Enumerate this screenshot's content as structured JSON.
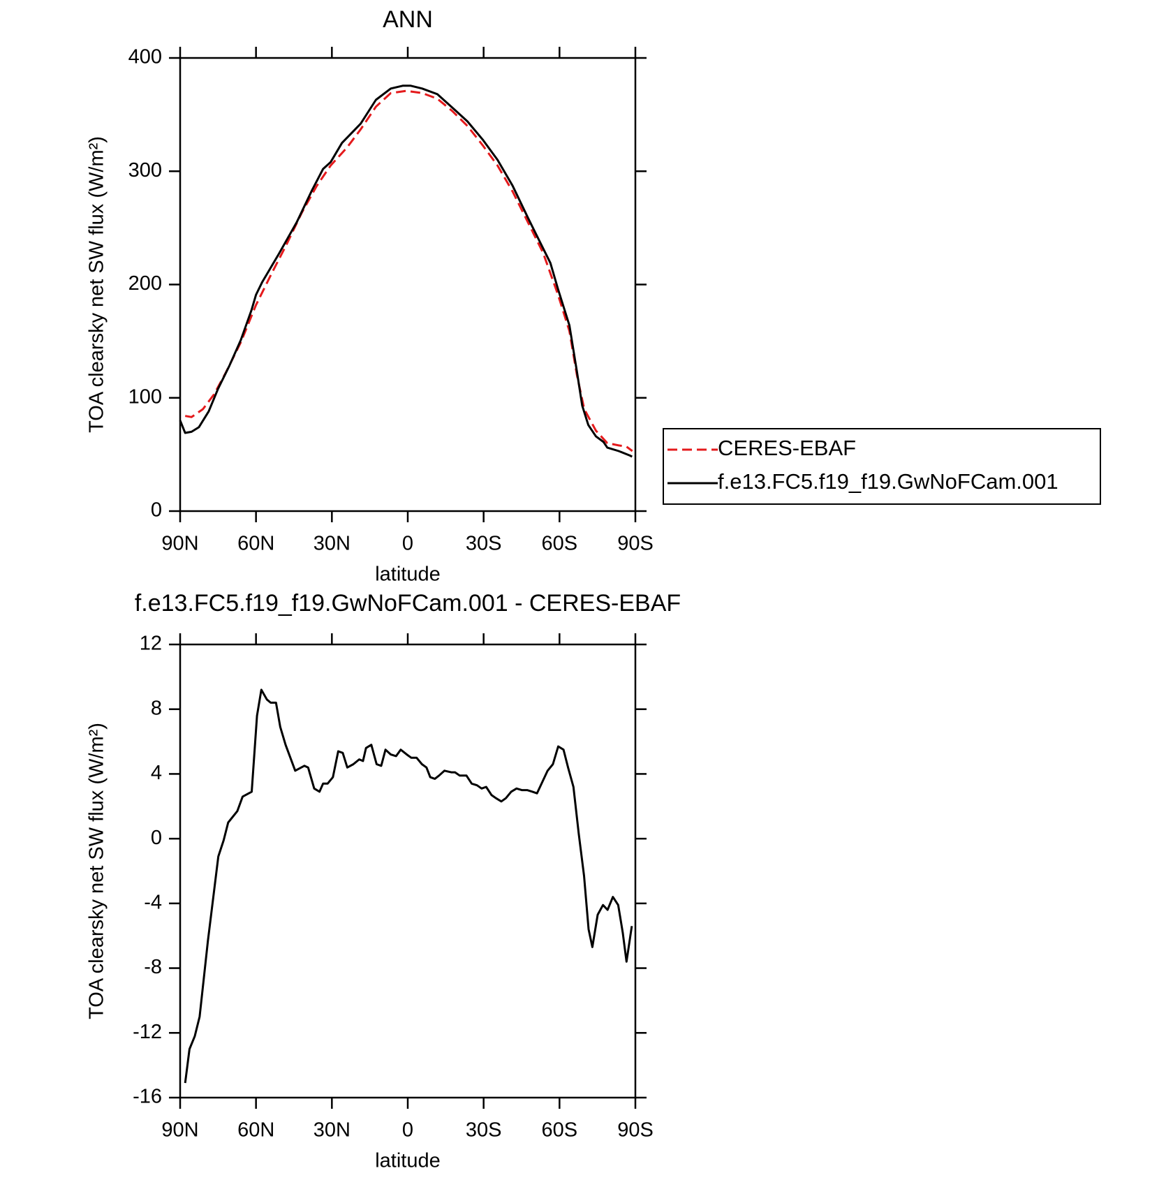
{
  "chart_data": [
    {
      "type": "line",
      "title": "ANN",
      "xlabel": "latitude",
      "ylabel": "TOA clearsky net SW flux (W/m²)",
      "xlim": [
        90,
        -90
      ],
      "xticks": [
        {
          "value": 90,
          "label": "90N"
        },
        {
          "value": 60,
          "label": "60N"
        },
        {
          "value": 30,
          "label": "30N"
        },
        0,
        {
          "value": -30,
          "label": "30S"
        },
        {
          "value": -60,
          "label": "60S"
        },
        {
          "value": -90,
          "label": "90S"
        }
      ],
      "ylim": [
        0,
        400
      ],
      "yticks": [
        0,
        100,
        200,
        300,
        400
      ],
      "legend": "right",
      "series": [
        {
          "name": "CERES-EBAF",
          "color": "#e41a1c",
          "style": "dashed",
          "x": [
            88,
            85.5,
            81,
            76.6,
            72,
            66,
            60,
            54,
            48,
            42,
            36,
            30.5,
            24,
            18.6,
            12.6,
            6.7,
            0.6,
            -5.7,
            -11.7,
            -17.7,
            -23.6,
            -29.6,
            -35.5,
            -41.5,
            -47.5,
            -53.5,
            -59.4,
            -63.9,
            -66.9,
            -69.8,
            -74.4,
            -78.9,
            -83.4,
            -86.4,
            -88.8
          ],
          "values": [
            84,
            83,
            90,
            103,
            122,
            149,
            182,
            209,
            235,
            263,
            287,
            305,
            321,
            337,
            357,
            369,
            371,
            369,
            364,
            353,
            340,
            323,
            305,
            282,
            255,
            228,
            191,
            159,
            120,
            90,
            71,
            60,
            58,
            57,
            53
          ]
        },
        {
          "name": "f.e13.FC5.f19_f19.GwNoFCam.001",
          "color": "#000000",
          "style": "solid",
          "x": [
            90,
            88,
            85.5,
            82.6,
            78.7,
            75,
            70.6,
            66,
            61.7,
            60,
            57.6,
            51,
            43.9,
            37.9,
            33.5,
            30.5,
            26,
            18.6,
            12.6,
            6.7,
            2,
            -1.2,
            -5.7,
            -11.7,
            -17.7,
            -23.6,
            -29.6,
            -35.5,
            -41.5,
            -47.5,
            -53.5,
            -56.4,
            -59.4,
            -63.9,
            -66.9,
            -69,
            -71.4,
            -74.4,
            -77.4,
            -78.9,
            -83.4,
            -87.9,
            -88.7
          ],
          "values": [
            80,
            69,
            70,
            74,
            88,
            108,
            128,
            151,
            178,
            191,
            202,
            227,
            255,
            283,
            302,
            308,
            325,
            342,
            363,
            373,
            375.5,
            375.5,
            373,
            368,
            356,
            344,
            328,
            310,
            287,
            259,
            232,
            219,
            196,
            164,
            123,
            93,
            76,
            66,
            61,
            56,
            53,
            49,
            48
          ]
        }
      ]
    },
    {
      "type": "line",
      "title": "f.e13.FC5.f19_f19.GwNoFCam.001 - CERES-EBAF",
      "xlabel": "latitude",
      "ylabel": "TOA clearsky net SW flux (W/m²)",
      "xlim": [
        90,
        -90
      ],
      "xticks": [
        {
          "value": 90,
          "label": "90N"
        },
        {
          "value": 60,
          "label": "60N"
        },
        {
          "value": 30,
          "label": "30N"
        },
        0,
        {
          "value": -30,
          "label": "30S"
        },
        {
          "value": -60,
          "label": "60S"
        },
        {
          "value": -90,
          "label": "90S"
        }
      ],
      "ylim": [
        -16,
        12
      ],
      "yticks": [
        -16,
        -12,
        -8,
        -4,
        0,
        4,
        8,
        12
      ],
      "series": [
        {
          "color": "#000000",
          "style": "solid",
          "x": [
            88,
            86.3,
            84.2,
            82.3,
            79,
            74.9,
            72.8,
            71,
            67.4,
            65.3,
            61.7,
            59.6,
            57.9,
            55.7,
            54.2,
            52.1,
            50.4,
            48.3,
            44.5,
            40.9,
            39.4,
            37,
            34.9,
            33.5,
            31.7,
            29.6,
            27.5,
            25.7,
            23.9,
            21.5,
            19.2,
            17.7,
            16.5,
            14.4,
            12.3,
            10.5,
            8.8,
            6.7,
            4.6,
            2.8,
            0.4,
            -1.4,
            -3.5,
            -5.6,
            -7.4,
            -8.9,
            -10.7,
            -12.4,
            -14.5,
            -17.2,
            -18.7,
            -20.5,
            -23.2,
            -25.3,
            -27.4,
            -29.2,
            -31,
            -33.1,
            -34.9,
            -37,
            -38.8,
            -40.9,
            -43,
            -45.1,
            -47.2,
            -49.3,
            -51.1,
            -53.2,
            -55.3,
            -57.4,
            -59.5,
            -61.6,
            -63.4,
            -65.5,
            -67.6,
            -69.7,
            -71.5,
            -73,
            -75.1,
            -77.2,
            -79,
            -81.1,
            -83.2,
            -85,
            -86.5,
            -88.6
          ],
          "values": [
            -15.1,
            -13,
            -12.2,
            -11,
            -6.3,
            -1.1,
            -0.1,
            1,
            1.7,
            2.6,
            2.9,
            7.6,
            9.2,
            8.6,
            8.4,
            8.4,
            6.9,
            5.8,
            4.2,
            4.5,
            4.4,
            3.1,
            2.9,
            3.4,
            3.4,
            3.8,
            5.4,
            5.3,
            4.4,
            4.6,
            4.9,
            4.8,
            5.6,
            5.8,
            4.6,
            4.5,
            5.5,
            5.2,
            5.1,
            5.5,
            5.2,
            5,
            5,
            4.6,
            4.4,
            3.8,
            3.7,
            3.9,
            4.2,
            4.1,
            4.1,
            3.9,
            3.9,
            3.4,
            3.3,
            3.1,
            3.2,
            2.7,
            2.5,
            2.3,
            2.5,
            2.9,
            3.1,
            3,
            3,
            2.9,
            2.8,
            3.5,
            4.2,
            4.6,
            5.7,
            5.5,
            4.4,
            3.2,
            0.3,
            -2.3,
            -5.6,
            -6.7,
            -4.7,
            -4.1,
            -4.4,
            -3.6,
            -4.1,
            -5.8,
            -7.6,
            -5.4
          ]
        }
      ]
    }
  ]
}
